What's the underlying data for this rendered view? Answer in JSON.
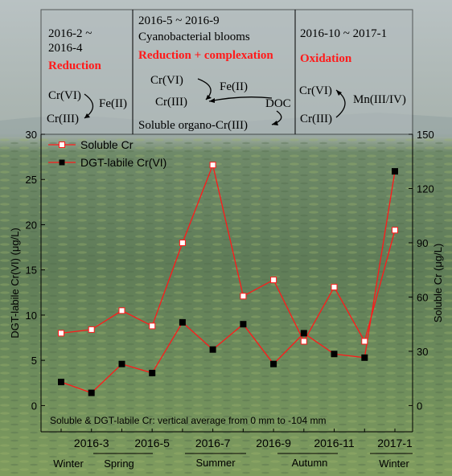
{
  "panels": [
    {
      "period": "2016-2 ~\n2016-4",
      "process": "Reduction",
      "labels": [
        "Cr(VI)",
        "Cr(III)",
        "Fe(II)"
      ]
    },
    {
      "period": "2016-5 ~ 2016-9",
      "subtitle": "Cyanobacterial blooms",
      "process": "Reduction + complexation",
      "labels": [
        "Cr(VI)",
        "Fe(II)",
        "Cr(III)",
        "DOC",
        "Soluble organo-Cr(III)"
      ]
    },
    {
      "period": "2016-10 ~ 2017-1",
      "process": "Oxidation",
      "labels": [
        "Cr(VI)",
        "Mn(III/IV)",
        "Cr(III)"
      ]
    }
  ],
  "note": "Soluble & DGT-labile Cr: vertical average from 0 mm to -104 mm",
  "seasons": [
    "Winter",
    "Spring",
    "Summer",
    "Autumn",
    "Winter"
  ],
  "colors": {
    "red": "#ff1a1a",
    "black": "#000000",
    "water": "#5d7a5b",
    "sky": "#b6bec0",
    "bloom": "#8fa65a"
  },
  "chart_data": {
    "type": "line",
    "x": [
      "2016-2",
      "2016-3",
      "2016-4",
      "2016-5",
      "2016-6",
      "2016-7",
      "2016-8",
      "2016-9",
      "2016-10",
      "2016-11",
      "2016-12",
      "2017-1"
    ],
    "x_tick_labels": [
      "2016-3",
      "2016-5",
      "2016-7",
      "2016-9",
      "2016-11",
      "2017-1"
    ],
    "ylabel_left": "DGT-labile Cr(VI) (μg/L)",
    "ylabel_right": "Soluble Cr (μg/L)",
    "ylim_left": [
      -2.9,
      30
    ],
    "ylim_right": [
      -14.5,
      150
    ],
    "yticks_left": [
      0,
      5,
      10,
      15,
      20,
      25,
      30
    ],
    "yticks_right": [
      0,
      30,
      60,
      90,
      120,
      150
    ],
    "legend_position": "top-left",
    "series": [
      {
        "name": "Soluble Cr",
        "axis": "right",
        "marker": "open-square",
        "color": "#ff1a1a",
        "values": [
          40,
          42,
          52.5,
          44,
          90,
          133,
          60.5,
          69.5,
          35.5,
          65.5,
          35.5,
          97
        ]
      },
      {
        "name": "DGT-labile Cr(VI)",
        "axis": "left",
        "marker": "filled-square",
        "color": "#ff1a1a",
        "values": [
          2.6,
          1.4,
          4.6,
          3.6,
          9.2,
          6.2,
          9.0,
          4.6,
          8.0,
          5.7,
          5.3,
          25.9
        ]
      }
    ]
  }
}
